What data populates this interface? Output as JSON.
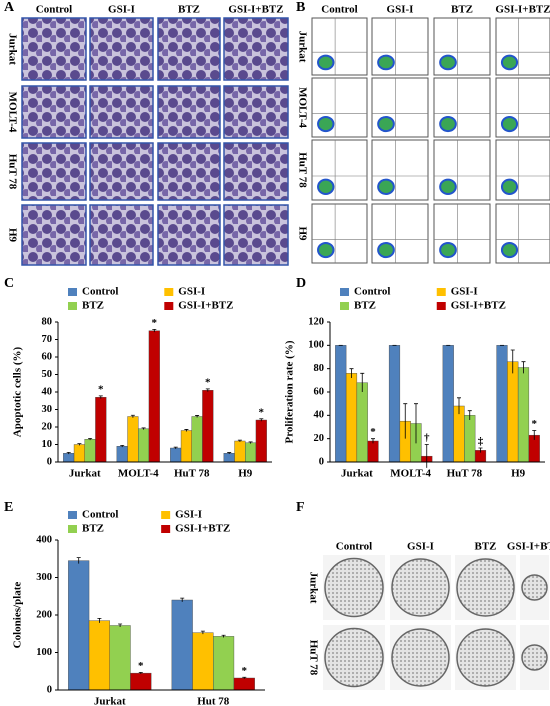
{
  "panels": {
    "A": {
      "label": "A",
      "columns": [
        "Control",
        "GSI-I",
        "BTZ",
        "GSI-I+BTZ"
      ],
      "rows": [
        "Jurkat",
        "MOLT-4",
        "HuT 78",
        "H9"
      ]
    },
    "B": {
      "label": "B",
      "columns": [
        "Control",
        "GSI-I",
        "BTZ",
        "GSI-I+BTZ"
      ],
      "rows": [
        "Jurkat",
        "MOLT-4",
        "HuT 78",
        "H9"
      ]
    },
    "F": {
      "label": "F",
      "columns": [
        "Control",
        "GSI-I",
        "BTZ",
        "GSI-I+BTZ"
      ],
      "rows": [
        "Jurkat",
        "HuT 78"
      ]
    }
  },
  "chart_data": [
    {
      "type": "bar",
      "panel": "C",
      "ylabel": "Apoptotic cells (%)",
      "categories": [
        "Jurkat",
        "MOLT-4",
        "HuT 78",
        "H9"
      ],
      "series": [
        {
          "name": "Control",
          "color": "#4f81bd",
          "values": [
            5,
            9,
            8,
            5
          ],
          "errors": [
            0.5,
            0.5,
            0.5,
            0.4
          ]
        },
        {
          "name": "GSI-I",
          "color": "#ffc000",
          "values": [
            10,
            26,
            18,
            12
          ],
          "errors": [
            0.5,
            0.7,
            0.6,
            0.5
          ]
        },
        {
          "name": "BTZ",
          "color": "#92d050",
          "values": [
            13,
            19,
            26,
            11
          ],
          "errors": [
            0.5,
            0.5,
            0.6,
            0.5
          ]
        },
        {
          "name": "GSI-I+BTZ",
          "color": "#c00000",
          "values": [
            37,
            75,
            41,
            24
          ],
          "errors": [
            0.8,
            0.8,
            0.8,
            0.7
          ]
        }
      ],
      "annotations": [
        "*",
        "*",
        "*",
        "*"
      ],
      "ylim": [
        0,
        80
      ],
      "yticks": [
        0,
        10,
        20,
        30,
        40,
        50,
        60,
        70,
        80
      ]
    },
    {
      "type": "bar",
      "panel": "D",
      "ylabel": "Proliferation rate (%)",
      "categories": [
        "Jurkat",
        "MOLT-4",
        "HuT 78",
        "H9"
      ],
      "series": [
        {
          "name": "Control",
          "color": "#4f81bd",
          "values": [
            100,
            100,
            100,
            100
          ],
          "errors": [
            0,
            0,
            0,
            0
          ]
        },
        {
          "name": "GSI-I",
          "color": "#ffc000",
          "values": [
            76,
            35,
            48,
            86
          ],
          "errors": [
            4,
            15,
            7,
            10
          ]
        },
        {
          "name": "BTZ",
          "color": "#92d050",
          "values": [
            68,
            33,
            40,
            81
          ],
          "errors": [
            8,
            17,
            4,
            5
          ]
        },
        {
          "name": "GSI-I+BTZ",
          "color": "#c00000",
          "values": [
            18,
            5,
            10,
            23
          ],
          "errors": [
            2,
            10,
            2,
            4
          ]
        }
      ],
      "annotations": [
        "*",
        "†",
        "‡",
        "*"
      ],
      "ylim": [
        0,
        120
      ],
      "yticks": [
        0,
        20,
        40,
        60,
        80,
        100,
        120
      ]
    },
    {
      "type": "bar",
      "panel": "E",
      "ylabel": "Colonies/plate",
      "categories": [
        "Jurkat",
        "Hut 78"
      ],
      "series": [
        {
          "name": "Control",
          "color": "#4f81bd",
          "values": [
            345,
            240
          ],
          "errors": [
            8,
            5
          ]
        },
        {
          "name": "GSI-I",
          "color": "#ffc000",
          "values": [
            185,
            153
          ],
          "errors": [
            6,
            4
          ]
        },
        {
          "name": "BTZ",
          "color": "#92d050",
          "values": [
            172,
            143
          ],
          "errors": [
            4,
            3
          ]
        },
        {
          "name": "GSI-I+BTZ",
          "color": "#c00000",
          "values": [
            45,
            32
          ],
          "errors": [
            2,
            2
          ]
        }
      ],
      "annotations": [
        "*",
        "*"
      ],
      "ylim": [
        0,
        400
      ],
      "yticks": [
        0,
        100,
        200,
        300,
        400
      ]
    }
  ]
}
